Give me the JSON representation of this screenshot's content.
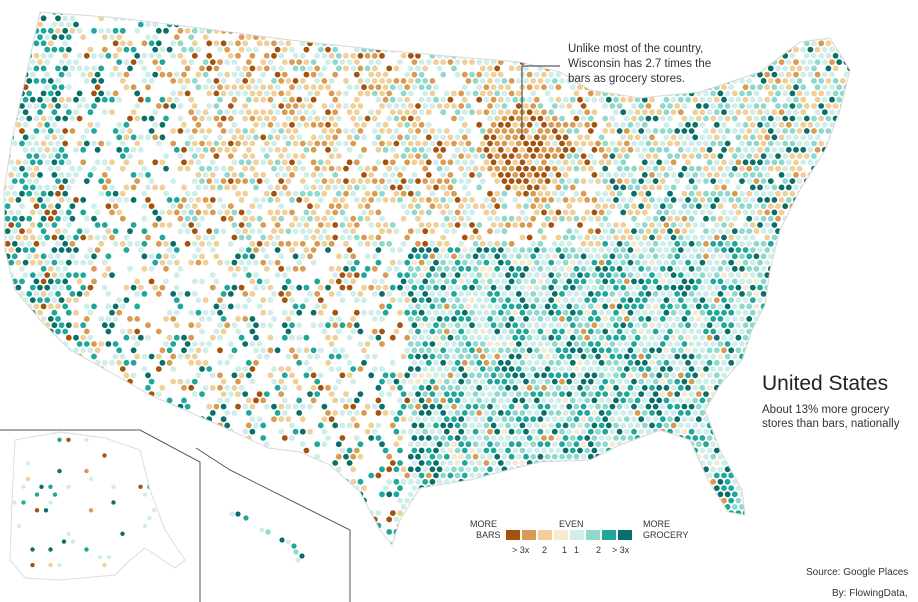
{
  "annotation": {
    "line1": "Unlike most of the country,",
    "line2": "Wisconsin has 2.7 times the",
    "line3": "bars as grocery stores."
  },
  "title": "United States",
  "subtitle": {
    "line1": "About 13% more grocery",
    "line2": "stores than bars, nationally"
  },
  "legend": {
    "left_label_1": "MORE",
    "left_label_2": "BARS",
    "center_label": "EVEN",
    "right_label_1": "MORE",
    "right_label_2": "GROCERY",
    "ticks": [
      "> 3x",
      "2",
      "1",
      "1",
      "2",
      "> 3x"
    ],
    "colors": [
      "#a5520e",
      "#d99b52",
      "#f0cf98",
      "#f6ead2",
      "#cfeeea",
      "#8fd8cc",
      "#1ea79a",
      "#0a6f68"
    ]
  },
  "source": "Source: Google Places",
  "credit": "By: FlowingData,"
}
